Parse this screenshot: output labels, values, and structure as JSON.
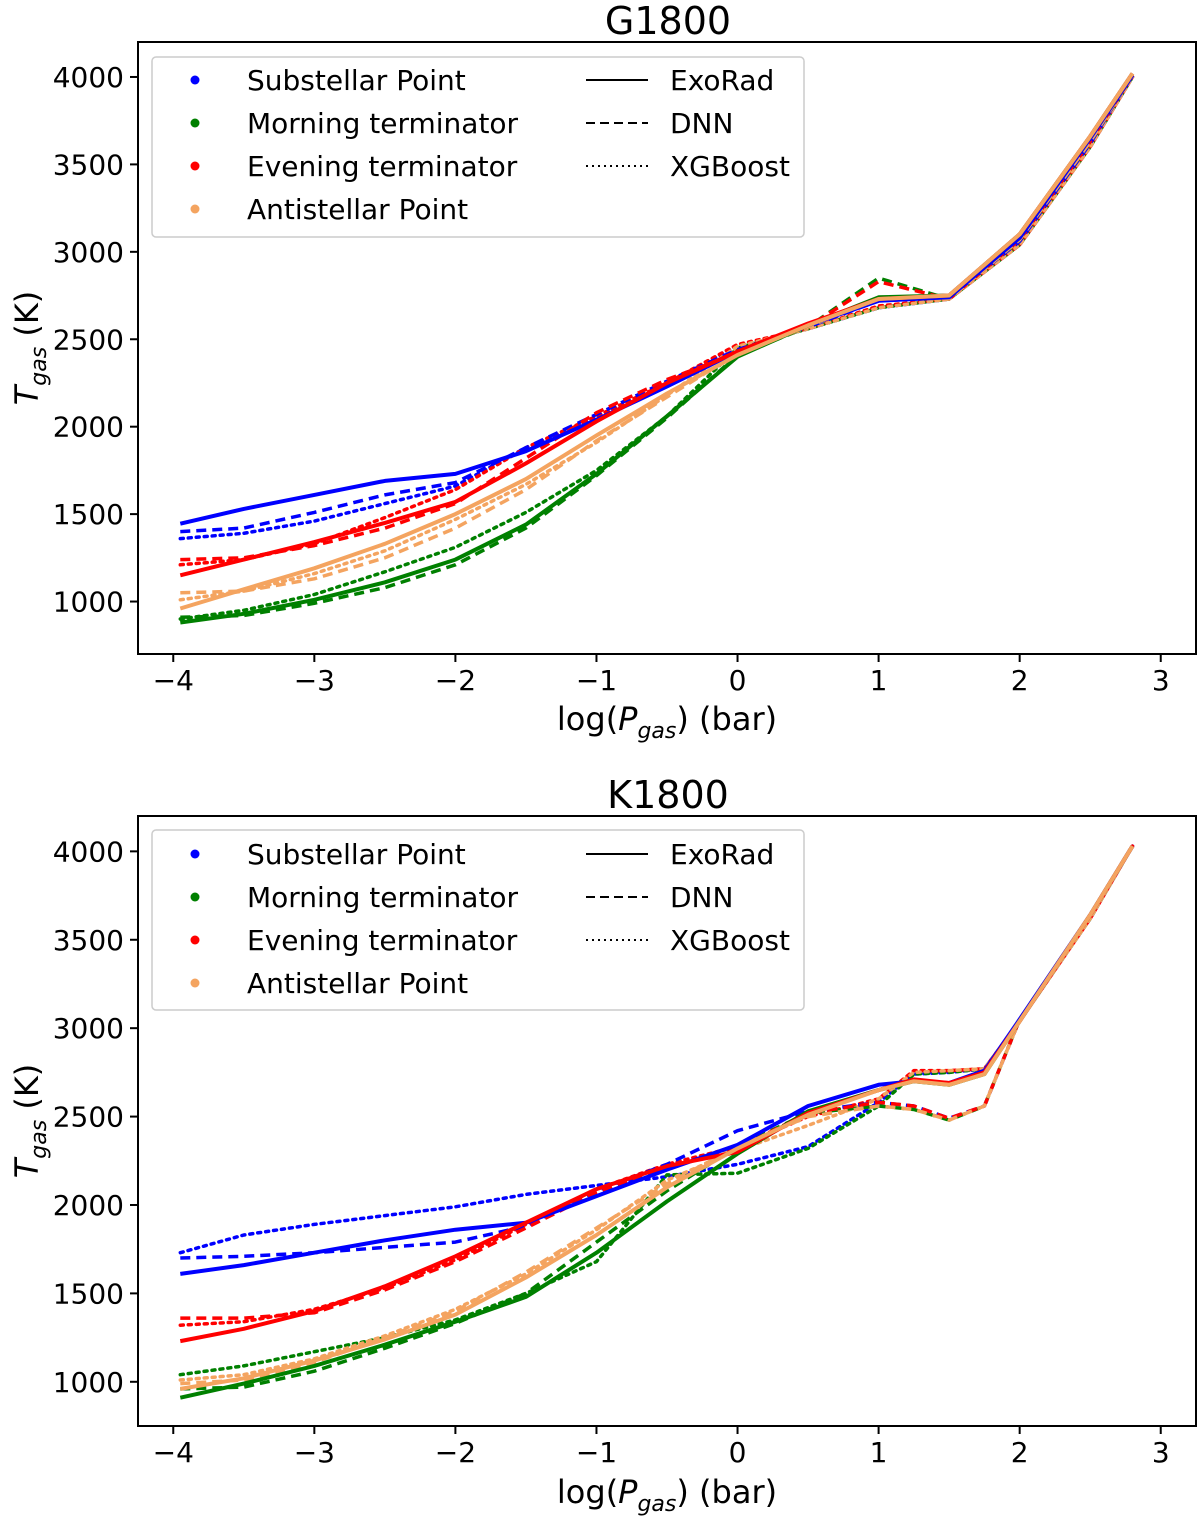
{
  "chart_data": [
    {
      "type": "line",
      "title": "G1800",
      "xlabel_pre": "log(",
      "xlabel_var": "P",
      "xlabel_sub": "gas",
      "xlabel_post": ") (bar)",
      "ylabel_var": "T",
      "ylabel_sub": "gas",
      "ylabel_post": " (K)",
      "xlim": [
        -4.25,
        3.25
      ],
      "ylim": [
        700,
        4200
      ],
      "xticks": [
        -4,
        -3,
        -2,
        -1,
        0,
        1,
        2,
        3
      ],
      "xtick_labels": [
        "−4",
        "−3",
        "−2",
        "−1",
        "0",
        "1",
        "2",
        "3"
      ],
      "yticks": [
        1000,
        1500,
        2000,
        2500,
        3000,
        3500,
        4000
      ],
      "ytick_labels": [
        "1000",
        "1500",
        "2000",
        "2500",
        "3000",
        "3500",
        "4000"
      ],
      "legend_location": "upper-left",
      "legend_locations": [
        "Substellar Point",
        "Morning terminator",
        "Evening terminator",
        "Antistellar Point"
      ],
      "legend_models": [
        "ExoRad",
        "DNN",
        "XGBoost"
      ],
      "colors": {
        "substellar": "#0000ff",
        "morning": "#008000",
        "evening": "#ff0000",
        "antistellar": "#f4a460"
      },
      "x": [
        -3.95,
        -3.5,
        -3.0,
        -2.5,
        -2.0,
        -1.5,
        -1.0,
        -0.5,
        0.0,
        0.5,
        1.0,
        1.5,
        2.0,
        2.5,
        2.8
      ],
      "series": [
        {
          "name": "Substellar Point ExoRad",
          "location": "substellar",
          "model": "ExoRad",
          "values": [
            1445,
            1530,
            1610,
            1690,
            1730,
            1860,
            2040,
            2230,
            2430,
            2580,
            2720,
            2740,
            3080,
            3650,
            4010
          ]
        },
        {
          "name": "Substellar Point DNN",
          "location": "substellar",
          "model": "DNN",
          "values": [
            1400,
            1420,
            1510,
            1610,
            1680,
            1880,
            2070,
            2260,
            2440,
            2570,
            2720,
            2740,
            3060,
            3620,
            4010
          ]
        },
        {
          "name": "Substellar Point XGBoost",
          "location": "substellar",
          "model": "XGBoost",
          "values": [
            1360,
            1390,
            1460,
            1560,
            1660,
            1880,
            2050,
            2250,
            2460,
            2560,
            2680,
            2730,
            3040,
            3600,
            4000
          ]
        },
        {
          "name": "Morning terminator ExoRad",
          "location": "morning",
          "model": "ExoRad",
          "values": [
            880,
            930,
            1010,
            1110,
            1240,
            1440,
            1730,
            2060,
            2400,
            2580,
            2740,
            2750,
            3100,
            3660,
            4020
          ]
        },
        {
          "name": "Morning terminator DNN",
          "location": "morning",
          "model": "DNN",
          "values": [
            910,
            920,
            990,
            1080,
            1210,
            1420,
            1720,
            2050,
            2410,
            2570,
            2850,
            2730,
            3070,
            3630,
            4010
          ]
        },
        {
          "name": "Morning terminator XGBoost",
          "location": "morning",
          "model": "XGBoost",
          "values": [
            900,
            950,
            1040,
            1170,
            1310,
            1510,
            1750,
            2060,
            2450,
            2560,
            2680,
            2730,
            3040,
            3600,
            4000
          ]
        },
        {
          "name": "Evening terminator ExoRad",
          "location": "evening",
          "model": "ExoRad",
          "values": [
            1150,
            1240,
            1340,
            1450,
            1570,
            1790,
            2030,
            2250,
            2430,
            2590,
            2730,
            2750,
            3100,
            3660,
            4020
          ]
        },
        {
          "name": "Evening terminator DNN",
          "location": "evening",
          "model": "DNN",
          "values": [
            1240,
            1250,
            1320,
            1420,
            1560,
            1820,
            2080,
            2270,
            2420,
            2570,
            2830,
            2730,
            3070,
            3630,
            4010
          ]
        },
        {
          "name": "Evening terminator XGBoost",
          "location": "evening",
          "model": "XGBoost",
          "values": [
            1210,
            1240,
            1330,
            1480,
            1640,
            1880,
            2060,
            2250,
            2470,
            2560,
            2690,
            2730,
            3040,
            3600,
            4000
          ]
        },
        {
          "name": "Antistellar Point ExoRad",
          "location": "antistellar",
          "model": "ExoRad",
          "values": [
            960,
            1070,
            1190,
            1330,
            1500,
            1700,
            1950,
            2190,
            2410,
            2580,
            2730,
            2750,
            3100,
            3660,
            4020
          ]
        },
        {
          "name": "Antistellar Point DNN",
          "location": "antistellar",
          "model": "DNN",
          "values": [
            1050,
            1060,
            1130,
            1250,
            1420,
            1640,
            1920,
            2170,
            2420,
            2570,
            2740,
            2730,
            3070,
            3630,
            4010
          ]
        },
        {
          "name": "Antistellar Point XGBoost",
          "location": "antistellar",
          "model": "XGBoost",
          "values": [
            1010,
            1060,
            1160,
            1290,
            1470,
            1670,
            1910,
            2180,
            2460,
            2560,
            2680,
            2730,
            3040,
            3600,
            4000
          ]
        }
      ]
    },
    {
      "type": "line",
      "title": "K1800",
      "xlabel_pre": "log(",
      "xlabel_var": "P",
      "xlabel_sub": "gas",
      "xlabel_post": ") (bar)",
      "ylabel_var": "T",
      "ylabel_sub": "gas",
      "ylabel_post": " (K)",
      "xlim": [
        -4.25,
        3.25
      ],
      "ylim": [
        750,
        4200
      ],
      "xticks": [
        -4,
        -3,
        -2,
        -1,
        0,
        1,
        2,
        3
      ],
      "xtick_labels": [
        "−4",
        "−3",
        "−2",
        "−1",
        "0",
        "1",
        "2",
        "3"
      ],
      "yticks": [
        1000,
        1500,
        2000,
        2500,
        3000,
        3500,
        4000
      ],
      "ytick_labels": [
        "1000",
        "1500",
        "2000",
        "2500",
        "3000",
        "3500",
        "4000"
      ],
      "legend_location": "upper-left",
      "legend_locations": [
        "Substellar Point",
        "Morning terminator",
        "Evening terminator",
        "Antistellar Point"
      ],
      "legend_models": [
        "ExoRad",
        "DNN",
        "XGBoost"
      ],
      "colors": {
        "substellar": "#0000ff",
        "morning": "#008000",
        "evening": "#ff0000",
        "antistellar": "#f4a460"
      },
      "x": [
        -3.95,
        -3.5,
        -3.0,
        -2.5,
        -2.0,
        -1.5,
        -1.0,
        -0.5,
        0.0,
        0.5,
        1.0,
        1.25,
        1.5,
        1.75,
        2.0,
        2.5,
        2.8
      ],
      "series": [
        {
          "name": "Substellar Point ExoRad",
          "location": "substellar",
          "model": "ExoRad",
          "values": [
            1610,
            1660,
            1730,
            1800,
            1860,
            1900,
            2050,
            2200,
            2340,
            2560,
            2680,
            2700,
            2690,
            2760,
            3050,
            3640,
            4030
          ]
        },
        {
          "name": "Substellar Point DNN",
          "location": "substellar",
          "model": "DNN",
          "values": [
            1700,
            1710,
            1730,
            1760,
            1790,
            1880,
            2080,
            2230,
            2420,
            2530,
            2580,
            2560,
            2490,
            2560,
            3050,
            3640,
            4030
          ]
        },
        {
          "name": "Substellar Point XGBoost",
          "location": "substellar",
          "model": "XGBoost",
          "values": [
            1730,
            1830,
            1890,
            1940,
            1990,
            2060,
            2110,
            2160,
            2230,
            2330,
            2580,
            2740,
            2750,
            2770,
            3040,
            3620,
            4030
          ]
        },
        {
          "name": "Morning terminator ExoRad",
          "location": "morning",
          "model": "ExoRad",
          "values": [
            910,
            990,
            1090,
            1210,
            1340,
            1480,
            1730,
            2020,
            2290,
            2530,
            2650,
            2700,
            2680,
            2740,
            3040,
            3640,
            4030
          ]
        },
        {
          "name": "Morning terminator DNN",
          "location": "morning",
          "model": "DNN",
          "values": [
            960,
            970,
            1060,
            1190,
            1330,
            1500,
            1790,
            2080,
            2330,
            2520,
            2560,
            2540,
            2480,
            2560,
            3050,
            3640,
            4030
          ]
        },
        {
          "name": "Morning terminator XGBoost",
          "location": "morning",
          "model": "XGBoost",
          "values": [
            1040,
            1090,
            1170,
            1250,
            1350,
            1500,
            1680,
            2170,
            2180,
            2320,
            2560,
            2740,
            2750,
            2770,
            3040,
            3620,
            4030
          ]
        },
        {
          "name": "Evening terminator ExoRad",
          "location": "evening",
          "model": "ExoRad",
          "values": [
            1230,
            1300,
            1400,
            1540,
            1710,
            1900,
            2090,
            2220,
            2300,
            2520,
            2650,
            2710,
            2690,
            2750,
            3040,
            3640,
            4030
          ]
        },
        {
          "name": "Evening terminator DNN",
          "location": "evening",
          "model": "DNN",
          "values": [
            1360,
            1360,
            1390,
            1520,
            1680,
            1870,
            2070,
            2210,
            2320,
            2520,
            2580,
            2560,
            2490,
            2560,
            3050,
            3640,
            4030
          ]
        },
        {
          "name": "Evening terminator XGBoost",
          "location": "evening",
          "model": "XGBoost",
          "values": [
            1320,
            1340,
            1410,
            1530,
            1690,
            1890,
            2090,
            2230,
            2330,
            2500,
            2600,
            2760,
            2760,
            2770,
            3040,
            3620,
            4030
          ]
        },
        {
          "name": "Antistellar Point ExoRad",
          "location": "antistellar",
          "model": "ExoRad",
          "values": [
            960,
            1020,
            1120,
            1240,
            1380,
            1590,
            1830,
            2100,
            2320,
            2510,
            2650,
            2700,
            2680,
            2740,
            3040,
            3640,
            4030
          ]
        },
        {
          "name": "Antistellar Point DNN",
          "location": "antistellar",
          "model": "DNN",
          "values": [
            990,
            1010,
            1110,
            1250,
            1400,
            1620,
            1870,
            2120,
            2330,
            2500,
            2560,
            2540,
            2480,
            2560,
            3050,
            3640,
            4030
          ]
        },
        {
          "name": "Antistellar Point XGBoost",
          "location": "antistellar",
          "model": "XGBoost",
          "values": [
            1010,
            1040,
            1130,
            1260,
            1410,
            1610,
            1860,
            2140,
            2310,
            2450,
            2600,
            2750,
            2760,
            2770,
            3040,
            3620,
            4030
          ]
        }
      ]
    }
  ]
}
